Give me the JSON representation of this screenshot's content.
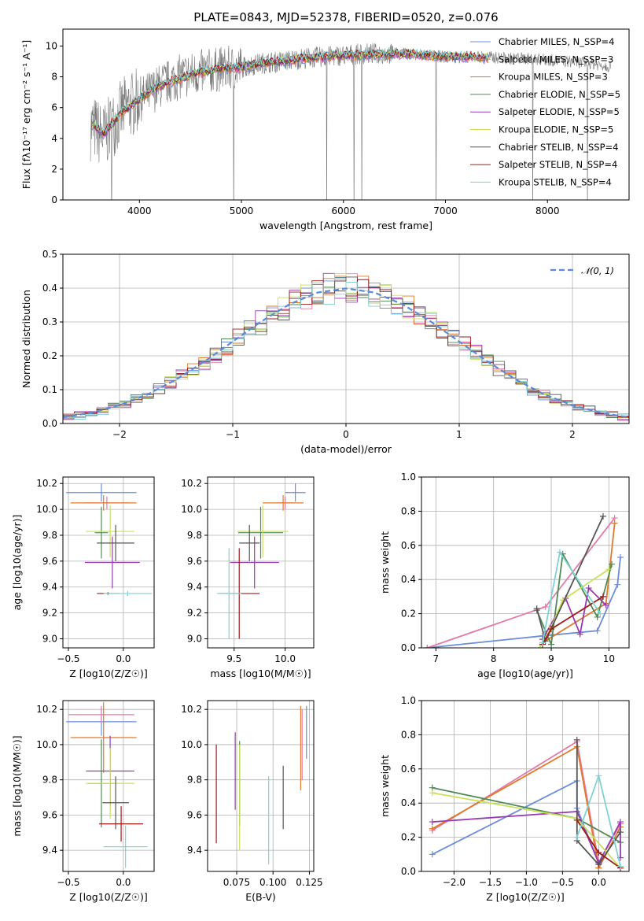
{
  "colors": {
    "Chabrier MILES": "#6a8ed8",
    "Salpeter MILES": "#e47aa8",
    "Kroupa MILES": "#e07a2a",
    "Chabrier ELODIE": "#4f8a54",
    "Salpeter ELODIE": "#9b3ab0",
    "Kroupa ELODIE": "#c8e05a",
    "Chabrier STELIB": "#555555",
    "Salpeter STELIB": "#a01a1a",
    "Kroupa STELIB": "#7fd2d2"
  },
  "chart_data": [
    {
      "type": "line",
      "title": "PLATE=0843, MJD=52378, FIBERID=0520, z=0.076",
      "xlabel": "wavelength [Angstrom, rest frame]",
      "ylabel": "Flux [fλ10⁻¹⁷ erg cm⁻² s⁻¹ A⁻¹]",
      "xlim": [
        3250,
        8800
      ],
      "ylim": [
        0,
        11.1
      ],
      "xticks": [
        4000,
        5000,
        6000,
        7000,
        8000
      ],
      "yticks": [
        0,
        2,
        4,
        6,
        8,
        10
      ],
      "grid": false,
      "legend_position": "lower-right",
      "legend": [
        "Chabrier MILES, N_SSP=4",
        "Salpeter MILES, N_SSP=3",
        "Kroupa MILES, N_SSP=3",
        "Chabrier ELODIE, N_SSP=5",
        "Salpeter ELODIE, N_SSP=5",
        "Kroupa ELODIE, N_SSP=5",
        "Chabrier STELIB, N_SSP=4",
        "Salpeter STELIB, N_SSP=4",
        "Kroupa STELIB, N_SSP=4"
      ],
      "data_series": {
        "name": "data",
        "x": [
          3550,
          3650,
          3750,
          3850,
          3950,
          4050,
          4200,
          4400,
          4600,
          4800,
          5000,
          5200,
          5400,
          5600,
          5800,
          6000,
          6200,
          6400,
          6600,
          6800,
          7000,
          7200,
          7400,
          7600,
          7800,
          8000,
          8200,
          8400,
          8600
        ],
        "y": [
          4.7,
          4.1,
          5.0,
          5.9,
          6.3,
          6.7,
          7.4,
          8.0,
          8.3,
          8.5,
          8.6,
          8.9,
          9.0,
          9.2,
          9.3,
          9.4,
          9.5,
          9.5,
          9.5,
          9.4,
          9.3,
          9.3,
          9.3,
          9.2,
          9.2,
          9.1,
          9.0,
          8.9,
          8.7
        ]
      },
      "model_series": {
        "names": [
          "Chabrier MILES",
          "Salpeter MILES",
          "Kroupa MILES",
          "Chabrier ELODIE",
          "Salpeter ELODIE",
          "Kroupa ELODIE",
          "Chabrier STELIB",
          "Salpeter STELIB",
          "Kroupa STELIB"
        ],
        "x": [
          3550,
          3650,
          3750,
          3850,
          3950,
          4050,
          4200,
          4400,
          4600,
          4800,
          5000,
          5200,
          5400,
          5600,
          5800,
          6000,
          6200,
          6400,
          6600,
          6800,
          7000,
          7200,
          7400
        ],
        "y": [
          4.9,
          4.3,
          5.1,
          5.8,
          6.3,
          6.8,
          7.4,
          7.9,
          8.3,
          8.5,
          8.6,
          8.9,
          9.0,
          9.2,
          9.3,
          9.4,
          9.4,
          9.5,
          9.5,
          9.4,
          9.3,
          9.3,
          9.2
        ]
      }
    },
    {
      "type": "line",
      "title": "",
      "xlabel": "(data-model)/error",
      "ylabel": "Normed distribution",
      "xlim": [
        -2.5,
        2.5
      ],
      "ylim": [
        0,
        0.5
      ],
      "xticks": [
        -2,
        -1,
        0,
        1,
        2
      ],
      "yticks": [
        0.0,
        0.1,
        0.2,
        0.3,
        0.4,
        0.5
      ],
      "grid": true,
      "legend_position": "top-right",
      "legend": [
        "𝒩(0, 1)"
      ],
      "series": [
        {
          "name": "𝒩(0, 1)",
          "style": "dashed",
          "x": [
            -2.5,
            -2.25,
            -2.0,
            -1.75,
            -1.5,
            -1.25,
            -1.0,
            -0.75,
            -0.5,
            -0.25,
            0.0,
            0.25,
            0.5,
            0.75,
            1.0,
            1.25,
            1.5,
            1.75,
            2.0,
            2.25,
            2.5
          ],
          "y": [
            0.018,
            0.032,
            0.054,
            0.086,
            0.13,
            0.183,
            0.242,
            0.301,
            0.352,
            0.387,
            0.399,
            0.387,
            0.352,
            0.301,
            0.242,
            0.183,
            0.13,
            0.086,
            0.054,
            0.032,
            0.018
          ]
        }
      ],
      "histogram_bin_width": 0.1
    },
    {
      "type": "scatter",
      "title": "",
      "xlabel": "Z [log10(Z/Z☉)]",
      "ylabel": "age  [log10(age/yr)]",
      "xlim": [
        -0.55,
        0.28
      ],
      "ylim": [
        8.93,
        10.25
      ],
      "xticks": [
        -0.5,
        0.0
      ],
      "yticks": [
        9.0,
        9.2,
        9.4,
        9.6,
        9.8,
        10.0,
        10.2
      ],
      "grid": true,
      "errorbars": [
        {
          "series": "Chabrier MILES",
          "x": -0.2,
          "y": 10.13,
          "xerr": 0.32,
          "yerr": 0.07
        },
        {
          "series": "Salpeter MILES",
          "x": -0.15,
          "y": 10.05,
          "xerr": 0.2,
          "yerr": 0.05
        },
        {
          "series": "Kroupa MILES",
          "x": -0.18,
          "y": 10.05,
          "xerr": 0.3,
          "yerr": 0.06
        },
        {
          "series": "Chabrier ELODIE",
          "x": -0.2,
          "y": 9.82,
          "xerr": 0.06,
          "yerr": 0.2
        },
        {
          "series": "Salpeter ELODIE",
          "x": -0.1,
          "y": 9.59,
          "xerr": 0.25,
          "yerr": 0.2
        },
        {
          "series": "Kroupa ELODIE",
          "x": -0.12,
          "y": 9.83,
          "xerr": 0.22,
          "yerr": 0.2
        },
        {
          "series": "Chabrier STELIB",
          "x": -0.07,
          "y": 9.74,
          "xerr": 0.17,
          "yerr": 0.14
        },
        {
          "series": "Salpeter STELIB",
          "x": -0.14,
          "y": 9.35,
          "xerr": 0.1,
          "yerr": 0.01
        },
        {
          "series": "Kroupa STELIB",
          "x": 0.04,
          "y": 9.35,
          "xerr": 0.22,
          "yerr": 0.02
        }
      ]
    },
    {
      "type": "scatter",
      "title": "",
      "xlabel": "mass [log10(M/M☉)]",
      "ylabel": "",
      "xlim": [
        9.24,
        10.28
      ],
      "ylim": [
        8.93,
        10.25
      ],
      "xticks": [
        9.5,
        10.0
      ],
      "yticks": [
        9.0,
        9.2,
        9.4,
        9.6,
        9.8,
        10.0,
        10.2
      ],
      "grid": true,
      "errorbars": [
        {
          "series": "Chabrier MILES",
          "x": 10.1,
          "y": 10.13,
          "xerr": 0.1,
          "yerr": 0.07
        },
        {
          "series": "Salpeter MILES",
          "x": 10.0,
          "y": 10.05,
          "xerr": 0.08,
          "yerr": 0.05
        },
        {
          "series": "Kroupa MILES",
          "x": 9.98,
          "y": 10.05,
          "xerr": 0.2,
          "yerr": 0.06
        },
        {
          "series": "Chabrier ELODIE",
          "x": 9.76,
          "y": 9.82,
          "xerr": 0.22,
          "yerr": 0.2
        },
        {
          "series": "Salpeter ELODIE",
          "x": 9.7,
          "y": 9.59,
          "xerr": 0.24,
          "yerr": 0.2
        },
        {
          "series": "Kroupa ELODIE",
          "x": 9.78,
          "y": 9.83,
          "xerr": 0.25,
          "yerr": 0.2
        },
        {
          "series": "Chabrier STELIB",
          "x": 9.65,
          "y": 9.74,
          "xerr": 0.1,
          "yerr": 0.14
        },
        {
          "series": "Salpeter STELIB",
          "x": 9.55,
          "y": 9.35,
          "xerr": 0.2,
          "yerr": 0.35
        },
        {
          "series": "Kroupa STELIB",
          "x": 9.45,
          "y": 9.35,
          "xerr": 0.12,
          "yerr": 0.35
        }
      ]
    },
    {
      "type": "line",
      "title": "",
      "xlabel": "age  [log10(age/yr)]",
      "ylabel": "mass weight",
      "xlim": [
        6.75,
        10.35
      ],
      "ylim": [
        0,
        1
      ],
      "xticks": [
        7,
        8,
        9,
        10
      ],
      "yticks": [
        0.0,
        0.2,
        0.4,
        0.6,
        0.8,
        1.0
      ],
      "grid": true,
      "series": [
        {
          "name": "Chabrier MILES",
          "x": [
            6.85,
            8.85,
            9.8,
            10.15,
            10.2
          ],
          "y": [
            0.0,
            0.07,
            0.1,
            0.37,
            0.53
          ]
        },
        {
          "name": "Salpeter MILES",
          "x": [
            6.85,
            8.9,
            10.1
          ],
          "y": [
            0.0,
            0.24,
            0.76
          ]
        },
        {
          "name": "Kroupa MILES",
          "x": [
            8.85,
            9.95,
            10.1
          ],
          "y": [
            0.03,
            0.26,
            0.73
          ]
        },
        {
          "name": "Chabrier ELODIE",
          "x": [
            8.75,
            9.0,
            9.2,
            9.8,
            10.05
          ],
          "y": [
            0.22,
            0.02,
            0.55,
            0.18,
            0.49
          ]
        },
        {
          "name": "Salpeter ELODIE",
          "x": [
            8.85,
            9.25,
            9.5,
            9.65,
            9.95
          ],
          "y": [
            0.05,
            0.29,
            0.08,
            0.35,
            0.25
          ]
        },
        {
          "name": "Kroupa ELODIE",
          "x": [
            8.8,
            9.0,
            9.2,
            10.0
          ],
          "y": [
            0.0,
            0.12,
            0.28,
            0.46
          ]
        },
        {
          "name": "Chabrier STELIB",
          "x": [
            8.75,
            8.9,
            9.9
          ],
          "y": [
            0.23,
            0.04,
            0.77
          ]
        },
        {
          "name": "Salpeter STELIB",
          "x": [
            8.85,
            9.0,
            9.9
          ],
          "y": [
            0.02,
            0.11,
            0.3
          ]
        },
        {
          "name": "Kroupa STELIB",
          "x": [
            8.85,
            9.15,
            9.85
          ],
          "y": [
            0.03,
            0.56,
            0.2
          ]
        }
      ]
    },
    {
      "type": "scatter",
      "title": "",
      "xlabel": "Z [log10(Z/Z☉)]",
      "ylabel": "mass [log10(M/M☉)]",
      "xlim": [
        -0.55,
        0.28
      ],
      "ylim": [
        9.28,
        10.25
      ],
      "xticks": [
        -0.5,
        0.0
      ],
      "yticks": [
        9.4,
        9.6,
        9.8,
        10.0,
        10.2
      ],
      "grid": true,
      "errorbars": [
        {
          "series": "Chabrier MILES",
          "x": -0.2,
          "y": 10.13,
          "xerr": 0.32,
          "yerr": 0.08
        },
        {
          "series": "Salpeter MILES",
          "x": -0.2,
          "y": 10.17,
          "xerr": 0.3,
          "yerr": 0.05
        },
        {
          "series": "Kroupa MILES",
          "x": -0.18,
          "y": 10.04,
          "xerr": 0.3,
          "yerr": 0.2
        },
        {
          "series": "Chabrier ELODIE",
          "x": -0.2,
          "y": 9.78,
          "xerr": 0.12,
          "yerr": 0.25
        },
        {
          "series": "Salpeter ELODIE",
          "x": -0.12,
          "y": 9.85,
          "xerr": 0.22,
          "yerr": 0.2
        },
        {
          "series": "Kroupa ELODIE",
          "x": -0.12,
          "y": 9.78,
          "xerr": 0.22,
          "yerr": 0.2
        },
        {
          "series": "Chabrier STELIB",
          "x": -0.07,
          "y": 9.67,
          "xerr": 0.12,
          "yerr": 0.15
        },
        {
          "series": "Salpeter STELIB",
          "x": -0.02,
          "y": 9.55,
          "xerr": 0.2,
          "yerr": 0.1
        },
        {
          "series": "Kroupa STELIB",
          "x": 0.02,
          "y": 9.42,
          "xerr": 0.2,
          "yerr": 0.12
        }
      ]
    },
    {
      "type": "scatter",
      "title": "",
      "xlabel": "E(B-V)",
      "ylabel": "",
      "xlim": [
        0.055,
        0.128
      ],
      "ylim": [
        9.28,
        10.25
      ],
      "xticks": [
        0.075,
        0.1,
        0.125
      ],
      "yticks": [
        9.4,
        9.6,
        9.8,
        10.0,
        10.2
      ],
      "grid": true,
      "errorbars": [
        {
          "series": "Chabrier MILES",
          "x": 0.123,
          "y": 10.07,
          "xerr": 0.0,
          "yerr": 0.15
        },
        {
          "series": "Salpeter MILES",
          "x": 0.12,
          "y": 10.0,
          "xerr": 0.0,
          "yerr": 0.2
        },
        {
          "series": "Kroupa MILES",
          "x": 0.119,
          "y": 9.98,
          "xerr": 0.0,
          "yerr": 0.24
        },
        {
          "series": "Chabrier ELODIE",
          "x": 0.077,
          "y": 9.78,
          "xerr": 0.0,
          "yerr": 0.24
        },
        {
          "series": "Salpeter ELODIE",
          "x": 0.074,
          "y": 9.85,
          "xerr": 0.0,
          "yerr": 0.22
        },
        {
          "series": "Kroupa ELODIE",
          "x": 0.077,
          "y": 9.7,
          "xerr": 0.0,
          "yerr": 0.3
        },
        {
          "series": "Chabrier STELIB",
          "x": 0.107,
          "y": 9.7,
          "xerr": 0.0,
          "yerr": 0.18
        },
        {
          "series": "Salpeter STELIB",
          "x": 0.061,
          "y": 9.72,
          "xerr": 0.0,
          "yerr": 0.28
        },
        {
          "series": "Kroupa STELIB",
          "x": 0.097,
          "y": 9.57,
          "xerr": 0.0,
          "yerr": 0.25
        }
      ]
    },
    {
      "type": "line",
      "title": "",
      "xlabel": "Z [log10(Z/Z☉)]",
      "ylabel": "mass weight",
      "xlim": [
        -2.45,
        0.42
      ],
      "ylim": [
        0,
        1
      ],
      "xticks": [
        -2.0,
        -1.5,
        -1.0,
        -0.5,
        0.0
      ],
      "yticks": [
        0.0,
        0.2,
        0.4,
        0.6,
        0.8,
        1.0
      ],
      "grid": true,
      "series": [
        {
          "name": "Chabrier MILES",
          "x": [
            -2.3,
            -0.3,
            -0.3,
            0.0,
            0.0
          ],
          "y": [
            0.1,
            0.53,
            0.37,
            0.05,
            0.02
          ]
        },
        {
          "name": "Salpeter MILES",
          "x": [
            -2.3,
            -0.3,
            0.0,
            0.3
          ],
          "y": [
            0.24,
            0.76,
            0.05,
            0.28
          ]
        },
        {
          "name": "Kroupa MILES",
          "x": [
            -2.3,
            -0.3,
            0.0,
            0.3
          ],
          "y": [
            0.25,
            0.73,
            0.02,
            0.26
          ]
        },
        {
          "name": "Chabrier ELODIE",
          "x": [
            -2.3,
            -0.3,
            0.3
          ],
          "y": [
            0.49,
            0.31,
            0.17
          ]
        },
        {
          "name": "Salpeter ELODIE",
          "x": [
            -2.3,
            -0.3,
            0.0,
            0.3,
            0.3
          ],
          "y": [
            0.29,
            0.35,
            0.05,
            0.29,
            0.08
          ]
        },
        {
          "name": "Kroupa ELODIE",
          "x": [
            -2.3,
            -0.3,
            0.3
          ],
          "y": [
            0.46,
            0.31,
            0.02
          ]
        },
        {
          "name": "Chabrier STELIB",
          "x": [
            -0.3,
            -0.3,
            0.0,
            0.3
          ],
          "y": [
            0.77,
            0.18,
            0.04,
            0.23
          ]
        },
        {
          "name": "Salpeter STELIB",
          "x": [
            -0.3,
            0.0,
            0.3
          ],
          "y": [
            0.3,
            0.11,
            0.02
          ]
        },
        {
          "name": "Kroupa STELIB",
          "x": [
            -0.3,
            0.0,
            0.3
          ],
          "y": [
            0.2,
            0.56,
            0.03
          ]
        }
      ]
    }
  ]
}
